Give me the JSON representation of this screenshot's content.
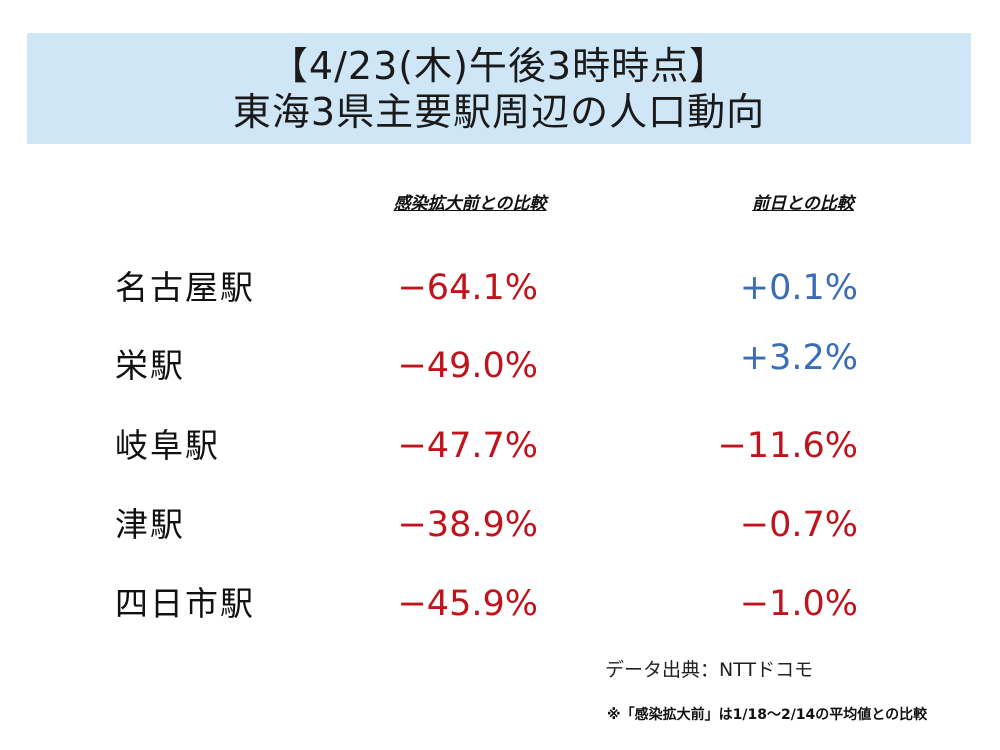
{
  "title": {
    "line1": "【4/23(木)午後3時時点】",
    "line2": "東海3県主要駅周辺の人口動向"
  },
  "headers": {
    "before_outbreak": "感染拡大前との比較",
    "previous_day": "前日との比較"
  },
  "colors": {
    "negative": "#c0141c",
    "positive": "#3a6db5",
    "title_bg": "#cfe6f7"
  },
  "rows": [
    {
      "station": "名古屋駅",
      "before": "−64.1%",
      "before_sign": "negative",
      "prev": "+0.1%",
      "prev_sign": "positive"
    },
    {
      "station": "栄駅",
      "before": "−49.0%",
      "before_sign": "negative",
      "prev": "+3.2%",
      "prev_sign": "positive"
    },
    {
      "station": "岐阜駅",
      "before": "−47.7%",
      "before_sign": "negative",
      "prev": "−11.6%",
      "prev_sign": "negative"
    },
    {
      "station": "津駅",
      "before": "−38.9%",
      "before_sign": "negative",
      "prev": "−0.7%",
      "prev_sign": "negative"
    },
    {
      "station": "四日市駅",
      "before": "−45.9%",
      "before_sign": "negative",
      "prev": "−1.0%",
      "prev_sign": "negative"
    }
  ],
  "footer": {
    "source": "データ出典：NTTドコモ",
    "note": "※「感染拡大前」は1/18〜2/14の平均値との比較"
  }
}
